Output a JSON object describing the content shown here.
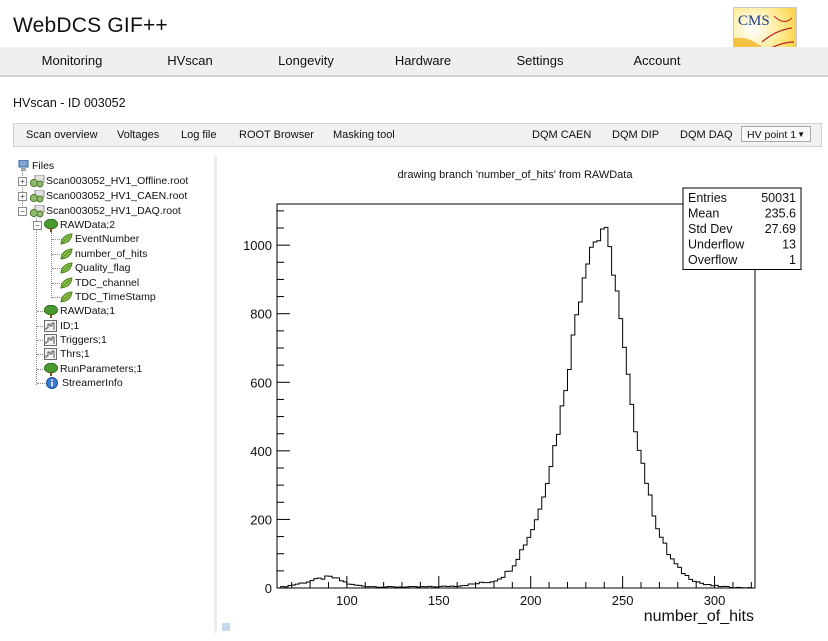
{
  "app": {
    "title": "WebDCS GIF++",
    "logo_text": "CMS"
  },
  "nav": {
    "items": [
      "Monitoring",
      "HVscan",
      "Longevity",
      "Hardware",
      "Settings",
      "Account"
    ]
  },
  "page": {
    "title": "HVscan - ID 003052"
  },
  "toolbar": {
    "left": [
      "Scan overview",
      "Voltages",
      "Log file",
      "ROOT Browser",
      "Masking tool"
    ],
    "right": [
      "DQM CAEN",
      "DQM DIP",
      "DQM DAQ"
    ],
    "select": {
      "value": "HV point 1"
    }
  },
  "tree": {
    "root": "Files",
    "files": [
      "Scan003052_HV1_Offline.root",
      "Scan003052_HV1_CAEN.root",
      "Scan003052_HV1_DAQ.root"
    ],
    "rawdata_main": "RAWData;2",
    "branches": [
      "EventNumber",
      "number_of_hits",
      "Quality_flag",
      "TDC_channel",
      "TDC_TimeStamp"
    ],
    "objects": [
      "RAWData;1",
      "ID;1",
      "Triggers;1",
      "Thrs;1",
      "RunParameters;1",
      "StreamerInfo"
    ]
  },
  "chart_data": {
    "type": "histogram",
    "title": "drawing branch 'number_of_hits' from RAWData",
    "xlabel": "number_of_hits",
    "ylabel": "",
    "xlim": [
      62,
      322
    ],
    "ylim": [
      0,
      1120
    ],
    "xticks": [
      100,
      150,
      200,
      250,
      300
    ],
    "yticks": [
      0,
      200,
      400,
      600,
      800,
      1000
    ],
    "grid": false,
    "bin_width": 2,
    "histogram_x": [
      62,
      70,
      80,
      88,
      92,
      96,
      102,
      110,
      120,
      130,
      140,
      150,
      160,
      170,
      180,
      185,
      190,
      195,
      200,
      205,
      210,
      215,
      220,
      225,
      228,
      230,
      232,
      234,
      236,
      238,
      240,
      242,
      244,
      246,
      248,
      250,
      252,
      255,
      260,
      265,
      270,
      275,
      280,
      285,
      290,
      295,
      300,
      305,
      310,
      315,
      322
    ],
    "histogram_y": [
      0,
      8,
      20,
      30,
      32,
      24,
      10,
      5,
      3,
      3,
      3,
      4,
      6,
      12,
      20,
      35,
      60,
      110,
      160,
      230,
      340,
      460,
      620,
      800,
      880,
      950,
      980,
      1020,
      1000,
      1040,
      1060,
      1000,
      960,
      900,
      830,
      720,
      660,
      520,
      390,
      260,
      160,
      100,
      60,
      35,
      20,
      10,
      6,
      4,
      2,
      1,
      0
    ],
    "stats": [
      {
        "label": "Entries",
        "value": "50031"
      },
      {
        "label": "Mean",
        "value": "235.6"
      },
      {
        "label": "Std Dev",
        "value": "27.69"
      },
      {
        "label": "Underflow",
        "value": "13"
      },
      {
        "label": "Overflow",
        "value": "1"
      }
    ]
  }
}
